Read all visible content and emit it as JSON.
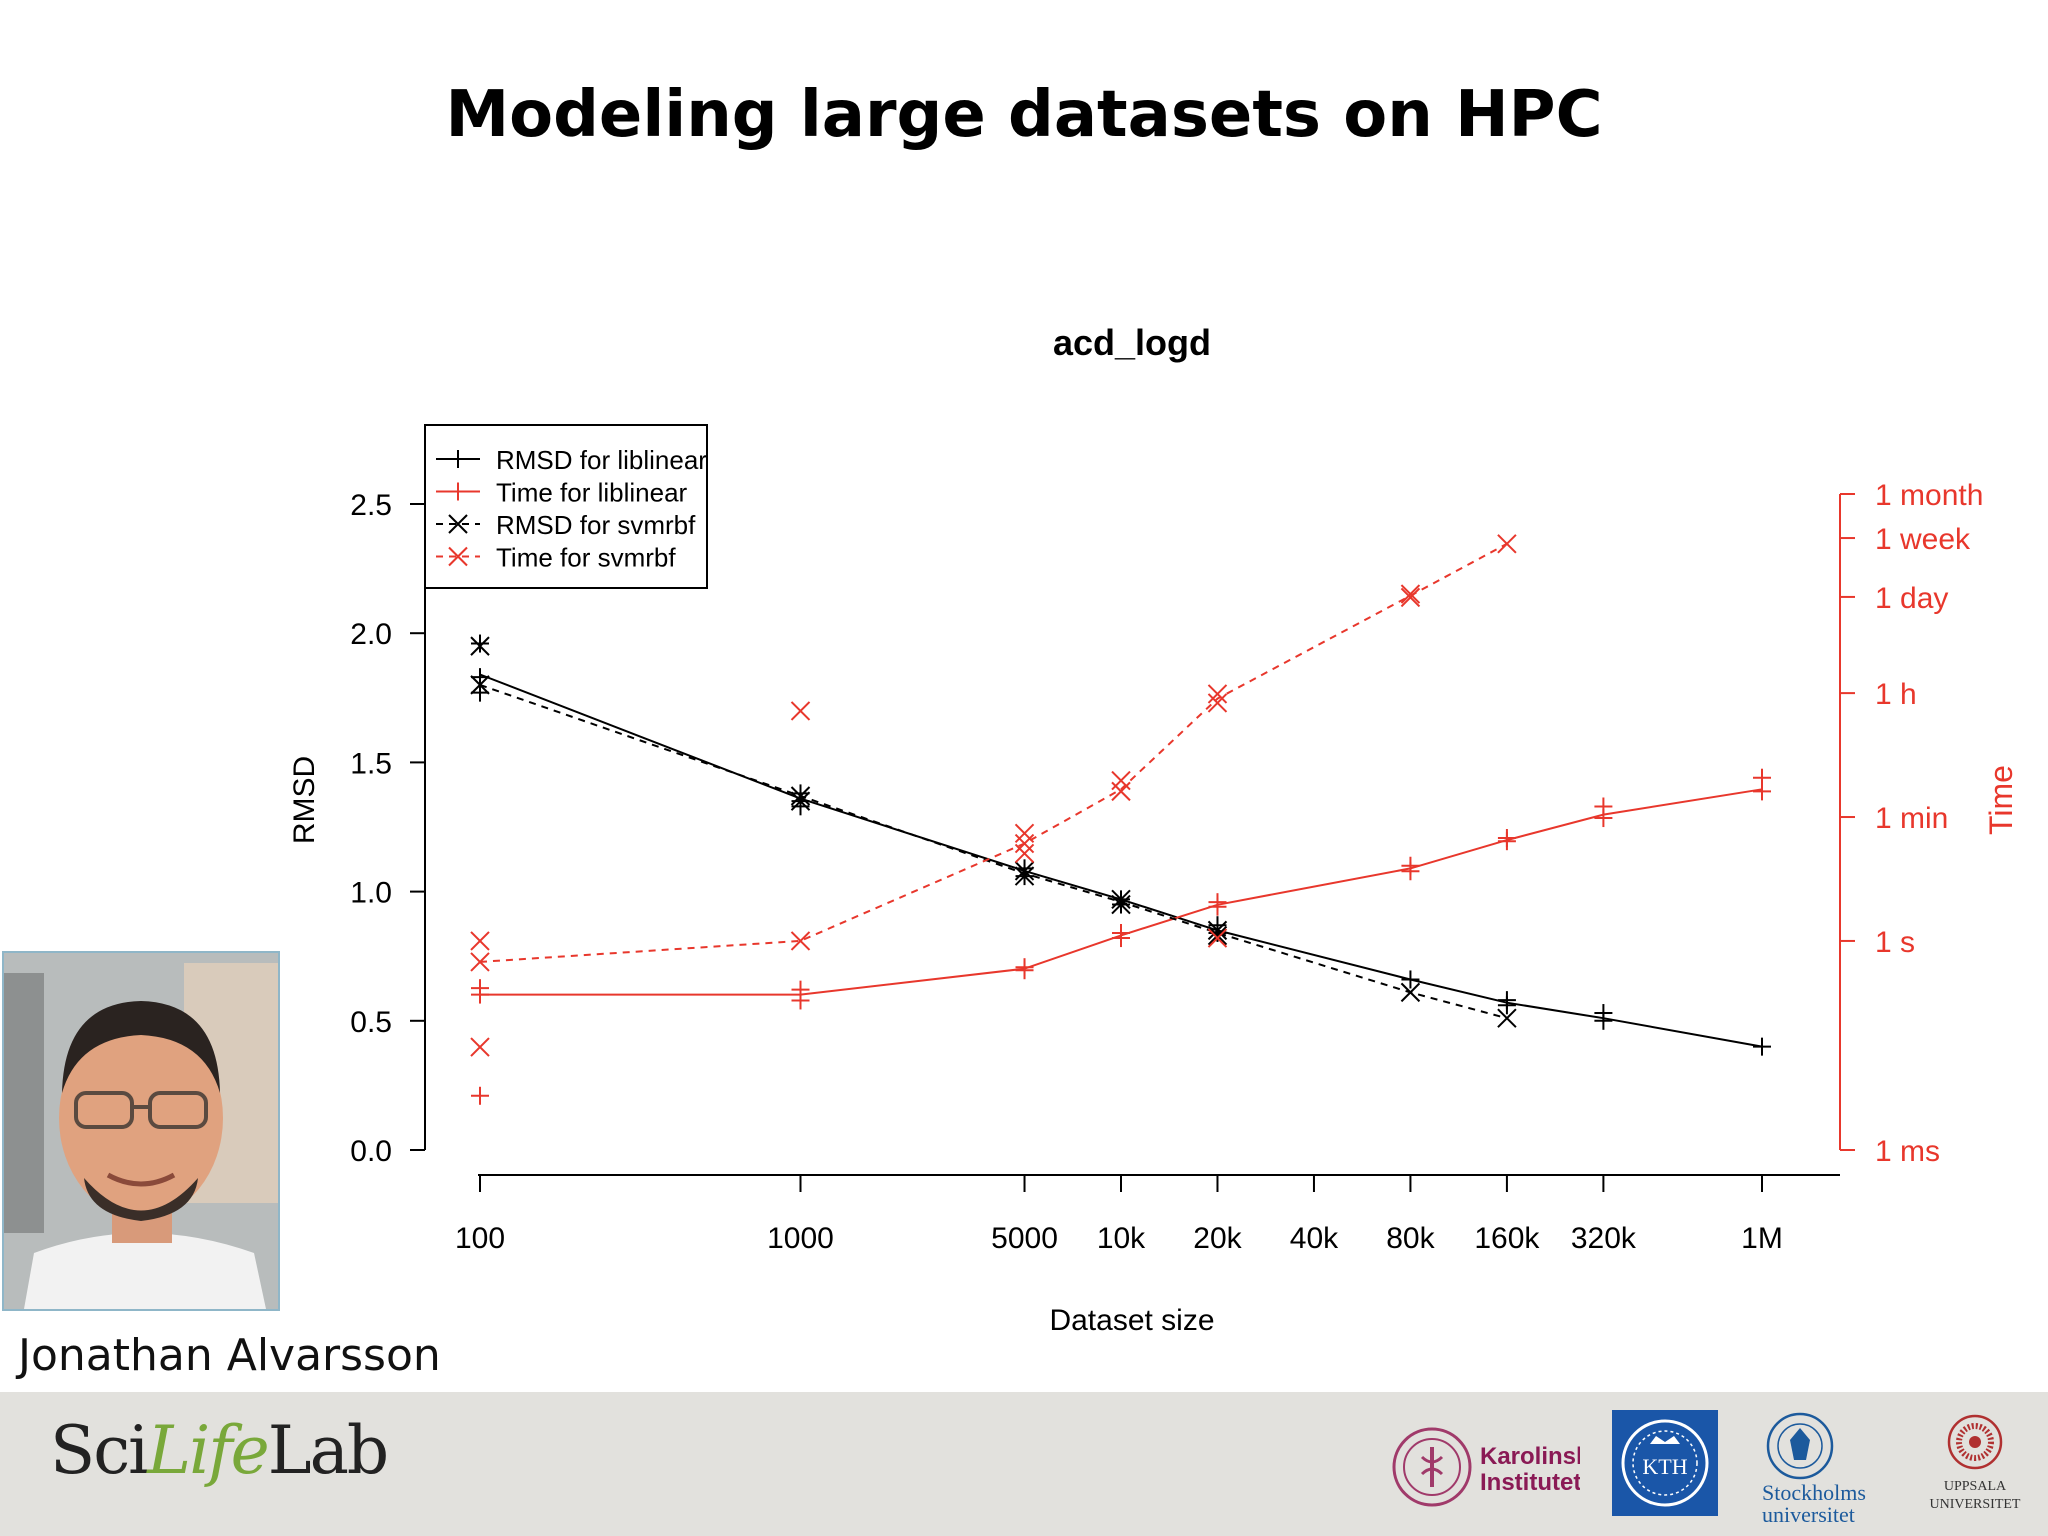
{
  "slide": {
    "title": "Modeling large datasets on HPC",
    "presenter_name": "Jonathan Alvarsson"
  },
  "footer": {
    "scilifelab_logo": {
      "sci": "Sci",
      "life": "Life",
      "lab": "Lab"
    },
    "logos": {
      "karolinska_line1": "Karolinska",
      "karolinska_line2": "Institutet",
      "kth": "KTH",
      "stockholm_line1": "Stockholms",
      "stockholm_line2": "universitet",
      "uppsala_line1": "UPPSALA",
      "uppsala_line2": "UNIVERSITET"
    }
  },
  "colors": {
    "rmsd": "#000000",
    "time": "#e8372c",
    "background": "#ffffff",
    "footer": "#e2e1dd"
  },
  "chart_data": {
    "type": "line",
    "title": "acd_logd",
    "xlabel": "Dataset size",
    "ylabel": "RMSD",
    "y2label": "Time",
    "x_scale": "log",
    "x": [
      100,
      1000,
      5000,
      10000,
      20000,
      40000,
      80000,
      160000,
      320000,
      1000000
    ],
    "x_tick_labels": [
      "100",
      "1000",
      "5000",
      "10k",
      "20k",
      "40k",
      "80k",
      "160k",
      "320k",
      "1M"
    ],
    "ylim": [
      0,
      2.5
    ],
    "y_ticks": [
      0.0,
      0.5,
      1.0,
      1.5,
      2.0,
      2.5
    ],
    "y_tick_labels": [
      "0.0",
      "0.5",
      "1.0",
      "1.5",
      "2.0",
      "2.5"
    ],
    "y2_scale": "log",
    "y2_ticks_seconds": [
      0.001,
      1,
      60,
      3600,
      86400,
      604800,
      2592000
    ],
    "y2_tick_labels": [
      "1 ms",
      "1 s",
      "1 min",
      "1 h",
      "1 day",
      "1 week",
      "1 month"
    ],
    "legend": {
      "position": "top-left",
      "entries": [
        "RMSD for liblinear",
        "Time for liblinear",
        "RMSD for svmrbf",
        "Time for svmrbf"
      ]
    },
    "grid": false,
    "series": [
      {
        "name": "RMSD for liblinear",
        "axis": "left",
        "color": "#000000",
        "line": "solid",
        "marker": "plus",
        "x": [
          100,
          1000,
          5000,
          10000,
          20000,
          80000,
          160000,
          320000,
          1000000
        ],
        "y": [
          1.84,
          1.36,
          1.08,
          0.97,
          0.85,
          0.66,
          0.57,
          0.51,
          0.4
        ],
        "points": [
          [
            100,
            1.96
          ],
          [
            100,
            1.83
          ],
          [
            100,
            1.77
          ],
          [
            1000,
            1.38
          ],
          [
            1000,
            1.35
          ],
          [
            1000,
            1.33
          ],
          [
            5000,
            1.09
          ],
          [
            5000,
            1.06
          ],
          [
            10000,
            0.97
          ],
          [
            10000,
            0.95
          ],
          [
            20000,
            0.87
          ],
          [
            20000,
            0.84
          ],
          [
            80000,
            0.66
          ],
          [
            160000,
            0.58
          ],
          [
            160000,
            0.56
          ],
          [
            320000,
            0.53
          ],
          [
            320000,
            0.5
          ],
          [
            1000000,
            0.4
          ]
        ]
      },
      {
        "name": "Time for liblinear",
        "axis": "right",
        "color": "#e8372c",
        "line": "solid",
        "marker": "plus",
        "x": [
          100,
          1000,
          5000,
          10000,
          20000,
          80000,
          160000,
          320000,
          1000000
        ],
        "y_seconds": [
          0.17,
          0.17,
          0.4,
          1.2,
          3.3,
          11,
          28,
          65,
          150
        ],
        "points": [
          [
            100,
            0.21
          ],
          [
            100,
            0.17
          ],
          [
            100,
            0.006
          ],
          [
            1000,
            0.2
          ],
          [
            1000,
            0.14
          ],
          [
            5000,
            0.42
          ],
          [
            5000,
            0.38
          ],
          [
            10000,
            1.3
          ],
          [
            10000,
            1.1
          ],
          [
            20000,
            3.6
          ],
          [
            20000,
            3.1
          ],
          [
            80000,
            12
          ],
          [
            80000,
            10
          ],
          [
            160000,
            30
          ],
          [
            160000,
            27
          ],
          [
            320000,
            85
          ],
          [
            320000,
            58
          ],
          [
            1000000,
            220
          ],
          [
            1000000,
            140
          ]
        ]
      },
      {
        "name": "RMSD for svmrbf",
        "axis": "left",
        "color": "#000000",
        "line": "dashed",
        "marker": "x",
        "x": [
          100,
          1000,
          5000,
          10000,
          20000,
          80000,
          160000
        ],
        "y": [
          1.8,
          1.37,
          1.07,
          0.96,
          0.84,
          0.61,
          0.51
        ],
        "points": [
          [
            100,
            1.95
          ],
          [
            100,
            1.8
          ],
          [
            1000,
            1.37
          ],
          [
            1000,
            1.35
          ],
          [
            5000,
            1.08
          ],
          [
            5000,
            1.06
          ],
          [
            10000,
            0.97
          ],
          [
            10000,
            0.95
          ],
          [
            20000,
            0.85
          ],
          [
            20000,
            0.83
          ],
          [
            80000,
            0.61
          ],
          [
            160000,
            0.51
          ]
        ]
      },
      {
        "name": "Time for svmrbf",
        "axis": "right",
        "color": "#e8372c",
        "line": "dashed",
        "marker": "x",
        "x": [
          100,
          1000,
          5000,
          10000,
          20000,
          80000,
          160000
        ],
        "y_seconds": [
          0.5,
          1,
          25,
          150,
          3000,
          90000,
          500000
        ],
        "points": [
          [
            100,
            1.0
          ],
          [
            100,
            0.5
          ],
          [
            100,
            0.03
          ],
          [
            1000,
            1.0
          ],
          [
            1000,
            2000
          ],
          [
            5000,
            35
          ],
          [
            5000,
            25
          ],
          [
            5000,
            18
          ],
          [
            10000,
            200
          ],
          [
            10000,
            140
          ],
          [
            20000,
            3500
          ],
          [
            20000,
            2600
          ],
          [
            20000,
            1.1
          ],
          [
            80000,
            95000
          ],
          [
            80000,
            85000
          ],
          [
            160000,
            500000
          ]
        ]
      }
    ]
  }
}
